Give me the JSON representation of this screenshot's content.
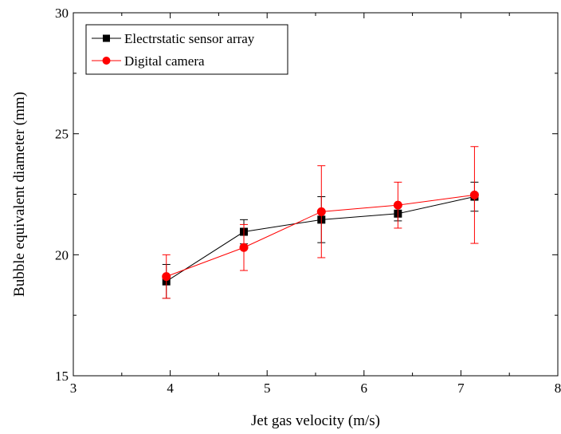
{
  "chart_data": {
    "type": "line",
    "xlabel": "Jet gas velocity (m/s)",
    "ylabel": "Bubble equivalent diameter (mm)",
    "xlim": [
      3,
      8
    ],
    "ylim": [
      15,
      30
    ],
    "x_ticks": [
      "3",
      "4",
      "5",
      "6",
      "7",
      "8"
    ],
    "y_ticks": [
      "15",
      "20",
      "25",
      "30"
    ],
    "grid": false,
    "legend_position": "top-left",
    "series": [
      {
        "name": "Electrstatic sensor array",
        "color": "#000000",
        "marker": "square",
        "x": [
          3.96,
          4.76,
          5.56,
          6.35,
          7.14
        ],
        "y": [
          18.9,
          20.95,
          21.45,
          21.7,
          22.4
        ],
        "error": [
          0.7,
          0.5,
          0.95,
          0.3,
          0.6
        ]
      },
      {
        "name": "Digital camera",
        "color": "#ff0000",
        "marker": "circle",
        "x": [
          3.96,
          4.76,
          5.56,
          6.35,
          7.14
        ],
        "y": [
          19.1,
          20.3,
          21.78,
          22.05,
          22.47
        ],
        "error": [
          0.9,
          0.95,
          1.9,
          0.95,
          2.0
        ]
      }
    ]
  }
}
